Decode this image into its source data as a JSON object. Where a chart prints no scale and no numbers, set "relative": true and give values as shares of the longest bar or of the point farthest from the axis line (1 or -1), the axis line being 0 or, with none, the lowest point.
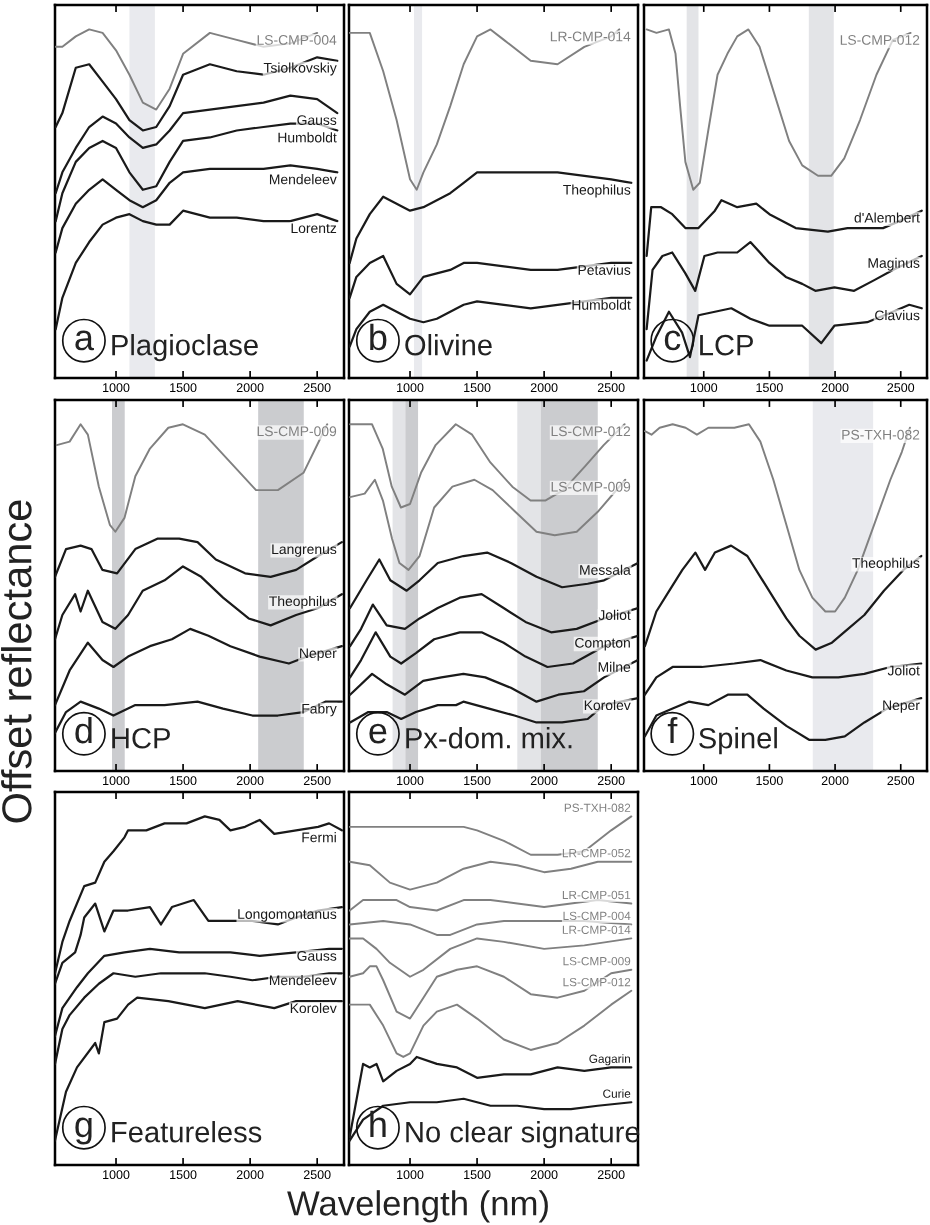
{
  "chart_data": [
    {
      "type": "line",
      "relative": true,
      "tick_labels": "x",
      "title": "Plagioclase",
      "annotations": [
        "a"
      ],
      "xlim": [
        545,
        2700
      ],
      "xticks": [
        1000,
        1500,
        2000,
        2500
      ],
      "bands": [
        {
          "axis": "x",
          "from": 1100,
          "to": 1290,
          "color": "#e9eaee"
        }
      ],
      "x": [
        550,
        600,
        700,
        800,
        900,
        1000,
        1100,
        1200,
        1300,
        1400,
        1500,
        1700,
        1900,
        2100,
        2300,
        2500,
        2650
      ],
      "series": [
        {
          "name": "LS-CMP-004",
          "color": "#808080",
          "values": [
            0.95,
            0.95,
            0.98,
            1.0,
            0.99,
            0.94,
            0.87,
            0.79,
            0.77,
            0.83,
            0.93,
            0.99,
            0.97,
            0.95,
            0.96,
            0.99,
            null
          ]
        },
        {
          "name": "Tsiolkovskiy",
          "color": "#1a1a1a",
          "values": [
            0.72,
            0.76,
            0.89,
            0.9,
            0.85,
            0.8,
            0.74,
            0.71,
            0.72,
            0.78,
            0.87,
            0.9,
            0.88,
            0.87,
            0.89,
            0.92,
            0.91
          ]
        },
        {
          "name": "Gauss",
          "color": "#1a1a1a",
          "values": [
            0.53,
            0.59,
            0.66,
            0.72,
            0.75,
            0.73,
            0.69,
            0.66,
            0.67,
            0.71,
            0.76,
            0.77,
            0.78,
            0.79,
            0.81,
            0.8,
            0.76
          ]
        },
        {
          "name": "Humboldt",
          "color": "#1a1a1a",
          "values": [
            0.45,
            0.53,
            0.62,
            0.66,
            0.68,
            0.66,
            0.59,
            0.54,
            0.55,
            0.62,
            0.68,
            0.69,
            0.71,
            0.72,
            0.73,
            0.73,
            0.71
          ]
        },
        {
          "name": "Mendeleev",
          "color": "#1a1a1a",
          "values": [
            0.36,
            0.43,
            0.5,
            0.54,
            0.57,
            0.54,
            0.51,
            0.49,
            0.51,
            0.56,
            0.59,
            0.6,
            0.6,
            0.6,
            0.61,
            0.6,
            0.59
          ]
        },
        {
          "name": "Lorentz",
          "color": "#1a1a1a",
          "values": [
            0.14,
            0.23,
            0.33,
            0.39,
            0.44,
            0.46,
            0.47,
            0.45,
            0.44,
            0.44,
            0.48,
            0.46,
            0.46,
            0.45,
            0.45,
            0.47,
            0.45
          ]
        }
      ]
    },
    {
      "type": "line",
      "relative": true,
      "tick_labels": "x",
      "title": "Olivine",
      "annotations": [
        "b"
      ],
      "xlim": [
        545,
        2700
      ],
      "xticks": [
        1000,
        1500,
        2000,
        2500
      ],
      "bands": [
        {
          "axis": "x",
          "from": 1030,
          "to": 1090,
          "color": "#e9eaee"
        }
      ],
      "x": [
        550,
        600,
        700,
        800,
        900,
        1000,
        1100,
        1200,
        1300,
        1400,
        1500,
        1700,
        1900,
        2100,
        2300,
        2500,
        2650
      ],
      "series": [
        {
          "name": "LR-CMP-014",
          "color": "#808080",
          "x": [
            550,
            600,
            700,
            800,
            900,
            1000,
            1050,
            1100,
            1200,
            1300,
            1400,
            1500,
            1600,
            1700,
            1900,
            2100,
            2300,
            2500,
            2560
          ],
          "values": [
            0.99,
            0.99,
            0.99,
            0.88,
            0.74,
            0.57,
            0.54,
            0.59,
            0.67,
            0.78,
            0.9,
            0.98,
            1.0,
            0.97,
            0.91,
            0.9,
            0.95,
            0.98,
            1.0
          ]
        },
        {
          "name": "Theophilus",
          "color": "#1a1a1a",
          "values": [
            0.33,
            0.4,
            0.47,
            0.52,
            0.5,
            0.48,
            0.49,
            0.51,
            0.53,
            0.56,
            0.59,
            0.59,
            0.59,
            0.59,
            0.58,
            0.57,
            0.56
          ]
        },
        {
          "name": "Petavius",
          "color": "#1a1a1a",
          "values": [
            0.23,
            0.29,
            0.33,
            0.35,
            0.27,
            0.24,
            0.29,
            0.3,
            0.31,
            0.33,
            0.33,
            0.32,
            0.31,
            0.31,
            0.32,
            0.33,
            0.33
          ]
        },
        {
          "name": "Humboldt",
          "color": "#1a1a1a",
          "values": [
            0.09,
            0.14,
            0.19,
            0.21,
            0.19,
            0.17,
            0.16,
            0.17,
            0.19,
            0.21,
            0.22,
            0.21,
            0.2,
            0.21,
            0.22,
            0.23,
            0.23
          ]
        }
      ]
    },
    {
      "type": "line",
      "relative": true,
      "tick_labels": "x",
      "title": "LCP",
      "annotations": [
        "c"
      ],
      "xlim": [
        545,
        2700
      ],
      "xticks": [
        1000,
        1500,
        2000,
        2500
      ],
      "bands": [
        {
          "axis": "x",
          "from": 870,
          "to": 960,
          "color": "#e3e4e7"
        },
        {
          "axis": "x",
          "from": 1800,
          "to": 1990,
          "color": "#e3e4e7"
        }
      ],
      "series": [
        {
          "name": "LS-CMP-012",
          "color": "#808080",
          "x": [
            565,
            640,
            735,
            785,
            820,
            860,
            920,
            970,
            1030,
            1105,
            1180,
            1255,
            1340,
            1425,
            1525,
            1650,
            1750,
            1870,
            1970,
            2070,
            2190,
            2315,
            2440,
            2575
          ],
          "values": [
            1.0,
            0.99,
            1.0,
            0.93,
            0.78,
            0.62,
            0.54,
            0.56,
            0.7,
            0.87,
            0.93,
            0.98,
            1.0,
            0.95,
            0.83,
            0.68,
            0.61,
            0.58,
            0.58,
            0.63,
            0.74,
            0.87,
            0.97,
            0.99
          ]
        },
        {
          "name": "d'Alembert",
          "color": "#1a1a1a",
          "x": [
            565,
            600,
            675,
            760,
            860,
            960,
            1085,
            1135,
            1255,
            1400,
            1500,
            1700,
            1945,
            2095,
            2245,
            2365,
            2490,
            2660
          ],
          "values": [
            0.35,
            0.49,
            0.49,
            0.47,
            0.43,
            0.43,
            0.48,
            0.51,
            0.49,
            0.5,
            0.47,
            0.43,
            0.42,
            0.43,
            0.43,
            0.43,
            0.45,
            0.48
          ]
        },
        {
          "name": "Maginus",
          "color": "#1a1a1a",
          "x": [
            565,
            610,
            685,
            760,
            860,
            935,
            1005,
            1105,
            1255,
            1355,
            1500,
            1625,
            1750,
            1850,
            1995,
            2145,
            2295,
            2440,
            2660
          ],
          "values": [
            0.14,
            0.31,
            0.35,
            0.36,
            0.3,
            0.25,
            0.35,
            0.36,
            0.36,
            0.39,
            0.33,
            0.29,
            0.27,
            0.25,
            0.26,
            0.25,
            0.28,
            0.31,
            0.35
          ]
        },
        {
          "name": "Clavius",
          "color": "#1a1a1a",
          "x": [
            565,
            640,
            735,
            835,
            895,
            960,
            1085,
            1210,
            1355,
            1500,
            1750,
            1895,
            1995,
            2245,
            2440,
            2565,
            2660
          ],
          "values": [
            0.05,
            0.12,
            0.19,
            0.13,
            0.06,
            0.18,
            0.19,
            0.2,
            0.17,
            0.15,
            0.15,
            0.1,
            0.15,
            0.16,
            0.19,
            0.21,
            0.2
          ]
        }
      ]
    },
    {
      "type": "line",
      "relative": true,
      "tick_labels": "x",
      "title": "HCP",
      "annotations": [
        "d"
      ],
      "ylabel": "Offset reflectance",
      "xlim": [
        545,
        2700
      ],
      "xticks": [
        1000,
        1500,
        2000,
        2500
      ],
      "bands": [
        {
          "axis": "x",
          "from": 970,
          "to": 1065,
          "color": "#cbcccf"
        },
        {
          "axis": "x",
          "from": 2060,
          "to": 2400,
          "color": "#cbcccf"
        }
      ],
      "series": [
        {
          "name": "LS-CMP-009",
          "color": "#808080",
          "x": [
            558,
            654,
            736,
            790,
            872,
            954,
            995,
            1063,
            1144,
            1253,
            1390,
            1499,
            1662,
            1853,
            2044,
            2207,
            2398,
            2575
          ],
          "values": [
            0.94,
            0.95,
            1.0,
            0.97,
            0.82,
            0.71,
            0.69,
            0.73,
            0.85,
            0.93,
            0.99,
            1.0,
            0.97,
            0.89,
            0.81,
            0.81,
            0.86,
            1.0
          ]
        },
        {
          "name": "Langrenus",
          "color": "#1a1a1a",
          "x": [
            545,
            627,
            736,
            817,
            899,
            1008,
            1144,
            1308,
            1471,
            1608,
            1744,
            1962,
            2153,
            2343,
            2507,
            2684
          ],
          "values": [
            0.56,
            0.64,
            0.65,
            0.64,
            0.58,
            0.57,
            0.64,
            0.67,
            0.67,
            0.66,
            0.61,
            0.57,
            0.56,
            0.58,
            0.62,
            0.66
          ]
        },
        {
          "name": "Theophilus",
          "color": "#1a1a1a",
          "x": [
            545,
            600,
            695,
            736,
            790,
            899,
            995,
            1090,
            1199,
            1362,
            1499,
            1635,
            1798,
            1989,
            2153,
            2343,
            2507,
            2684
          ],
          "values": [
            0.38,
            0.45,
            0.51,
            0.46,
            0.52,
            0.43,
            0.41,
            0.45,
            0.52,
            0.55,
            0.59,
            0.56,
            0.5,
            0.44,
            0.42,
            0.45,
            0.47,
            0.51
          ]
        },
        {
          "name": "Neper",
          "color": "#1a1a1a",
          "x": [
            545,
            654,
            790,
            899,
            981,
            1090,
            1253,
            1417,
            1553,
            1689,
            1853,
            2071,
            2289,
            2425,
            2684
          ],
          "values": [
            0.19,
            0.29,
            0.37,
            0.32,
            0.3,
            0.33,
            0.36,
            0.38,
            0.41,
            0.39,
            0.36,
            0.33,
            0.31,
            0.33,
            0.36
          ]
        },
        {
          "name": "Fabry",
          "color": "#1a1a1a",
          "x": [
            545,
            627,
            736,
            872,
            981,
            1144,
            1362,
            1608,
            1798,
            2017,
            2207,
            2398,
            2561,
            2684
          ],
          "values": [
            0.11,
            0.17,
            0.2,
            0.18,
            0.16,
            0.19,
            0.19,
            0.2,
            0.18,
            0.16,
            0.16,
            0.17,
            0.2,
            0.2
          ]
        }
      ]
    },
    {
      "type": "line",
      "relative": true,
      "tick_labels": "x",
      "title": "Px-dom. mix.",
      "annotations": [
        "e"
      ],
      "xlim": [
        545,
        2700
      ],
      "xticks": [
        1000,
        1500,
        2000,
        2500
      ],
      "bands": [
        {
          "axis": "x",
          "from": 870,
          "to": 965,
          "color": "#e3e4e7"
        },
        {
          "axis": "x",
          "from": 965,
          "to": 1060,
          "color": "#cbcccf"
        },
        {
          "axis": "x",
          "from": 1800,
          "to": 1975,
          "color": "#e3e4e7"
        },
        {
          "axis": "x",
          "from": 1975,
          "to": 2400,
          "color": "#cbcccf"
        }
      ],
      "series": [
        {
          "name": "LS-CMP-012",
          "color": "#808080",
          "x": [
            553,
            717,
            796,
            864,
            932,
            1000,
            1082,
            1191,
            1341,
            1463,
            1599,
            1763,
            1899,
            2008,
            2144,
            2308,
            2444,
            2600
          ],
          "values": [
            1.0,
            1.0,
            0.93,
            0.82,
            0.76,
            0.77,
            0.86,
            0.94,
            1.0,
            0.97,
            0.89,
            0.82,
            0.78,
            0.78,
            0.81,
            0.88,
            0.94,
            1.0
          ]
        },
        {
          "name": "LS-CMP-009",
          "color": "#808080",
          "x": [
            553,
            662,
            738,
            798,
            866,
            921,
            989,
            1071,
            1180,
            1316,
            1480,
            1616,
            1779,
            1943,
            2079,
            2243,
            2406,
            2605
          ],
          "values": [
            0.79,
            0.8,
            0.84,
            0.78,
            0.67,
            0.6,
            0.58,
            0.62,
            0.76,
            0.82,
            0.84,
            0.81,
            0.75,
            0.69,
            0.68,
            0.69,
            0.75,
            0.84
          ]
        },
        {
          "name": "Messala",
          "color": "#1a1a1a",
          "x": [
            553,
            676,
            771,
            853,
            975,
            1071,
            1207,
            1398,
            1575,
            1752,
            1943,
            2134,
            2325,
            2447,
            2700
          ],
          "values": [
            0.47,
            0.55,
            0.61,
            0.55,
            0.52,
            0.55,
            0.6,
            0.62,
            0.63,
            0.6,
            0.56,
            0.53,
            0.54,
            0.55,
            0.6
          ]
        },
        {
          "name": "Joliot",
          "color": "#1a1a1a",
          "x": [
            553,
            635,
            723,
            826,
            962,
            1071,
            1207,
            1371,
            1534,
            1698,
            1861,
            2052,
            2243,
            2447,
            2700
          ],
          "values": [
            0.36,
            0.41,
            0.48,
            0.42,
            0.41,
            0.44,
            0.47,
            0.5,
            0.51,
            0.47,
            0.43,
            0.4,
            0.41,
            0.44,
            0.47
          ]
        },
        {
          "name": "Compton",
          "color": "#1a1a1a",
          "x": [
            553,
            635,
            744,
            853,
            934,
            1044,
            1180,
            1371,
            1534,
            1698,
            1861,
            2025,
            2215,
            2447,
            2700
          ],
          "values": [
            0.27,
            0.32,
            0.4,
            0.33,
            0.31,
            0.34,
            0.38,
            0.4,
            0.4,
            0.37,
            0.33,
            0.3,
            0.31,
            0.36,
            0.39
          ]
        },
        {
          "name": "Milne",
          "color": "#1a1a1a",
          "x": [
            553,
            717,
            826,
            962,
            1098,
            1234,
            1398,
            1561,
            1752,
            1943,
            2106,
            2297,
            2447,
            2700
          ],
          "values": [
            0.22,
            0.28,
            0.25,
            0.22,
            0.26,
            0.27,
            0.28,
            0.27,
            0.24,
            0.2,
            0.22,
            0.23,
            0.27,
            0.32
          ]
        },
        {
          "name": "Korolev",
          "color": "#1a1a1a",
          "x": [
            553,
            689,
            826,
            934,
            1044,
            1207,
            1343,
            1398,
            1589,
            1779,
            1943,
            2134,
            2325,
            2447,
            2700
          ],
          "values": [
            0.14,
            0.17,
            0.17,
            0.15,
            0.17,
            0.19,
            0.19,
            0.2,
            0.18,
            0.16,
            0.14,
            0.14,
            0.15,
            0.19,
            0.21
          ]
        }
      ]
    },
    {
      "type": "line",
      "relative": true,
      "tick_labels": "x",
      "title": "Spinel",
      "annotations": [
        "f"
      ],
      "xlim": [
        545,
        2700
      ],
      "xticks": [
        1000,
        1500,
        2000,
        2500
      ],
      "bands": [
        {
          "axis": "x",
          "from": 1830,
          "to": 2290,
          "color": "#e9eaee"
        }
      ],
      "series": [
        {
          "name": "PS-TXH-082",
          "color": "#808080",
          "x": [
            552,
            602,
            664,
            763,
            862,
            948,
            1035,
            1233,
            1344,
            1431,
            1530,
            1629,
            1728,
            1827,
            1926,
            2000,
            2074,
            2173,
            2297,
            2421,
            2508,
            2570
          ],
          "values": [
            0.98,
            0.97,
            0.99,
            1.0,
            0.99,
            0.97,
            0.99,
            0.99,
            1.0,
            0.95,
            0.84,
            0.71,
            0.58,
            0.5,
            0.46,
            0.46,
            0.5,
            0.58,
            0.71,
            0.84,
            0.92,
            0.99
          ]
        },
        {
          "name": "Theophilus",
          "color": "#1a1a1a",
          "x": [
            552,
            639,
            738,
            837,
            936,
            1010,
            1085,
            1208,
            1332,
            1431,
            1530,
            1629,
            1728,
            1852,
            1976,
            2099,
            2223,
            2372,
            2520,
            2656
          ],
          "values": [
            0.36,
            0.46,
            0.52,
            0.58,
            0.63,
            0.58,
            0.63,
            0.65,
            0.62,
            0.56,
            0.5,
            0.44,
            0.39,
            0.35,
            0.37,
            0.41,
            0.45,
            0.52,
            0.58,
            0.62
          ]
        },
        {
          "name": "Joliot",
          "color": "#1a1a1a",
          "x": [
            552,
            639,
            763,
            985,
            1233,
            1431,
            1629,
            1827,
            2025,
            2223,
            2421,
            2656
          ],
          "values": [
            0.22,
            0.27,
            0.3,
            0.3,
            0.31,
            0.32,
            0.29,
            0.27,
            0.27,
            0.28,
            0.3,
            0.31
          ]
        },
        {
          "name": "Neper",
          "color": "#1a1a1a",
          "x": [
            552,
            639,
            763,
            886,
            1035,
            1183,
            1332,
            1456,
            1629,
            1802,
            1926,
            2074,
            2223,
            2396,
            2656
          ],
          "values": [
            0.1,
            0.16,
            0.18,
            0.2,
            0.19,
            0.22,
            0.22,
            0.18,
            0.13,
            0.09,
            0.09,
            0.1,
            0.14,
            0.18,
            0.21
          ]
        }
      ]
    },
    {
      "type": "line",
      "relative": true,
      "tick_labels": "x",
      "title": "Featureless",
      "annotations": [
        "g"
      ],
      "xlim": [
        545,
        2700
      ],
      "xticks": [
        1000,
        1500,
        2000,
        2500
      ],
      "series": [
        {
          "name": "Fermi",
          "color": "#1a1a1a",
          "x": [
            545,
            600,
            654,
            763,
            845,
            913,
            981,
            1063,
            1090,
            1226,
            1362,
            1526,
            1662,
            1771,
            1853,
            1962,
            2071,
            2180,
            2343,
            2507,
            2589,
            2684
          ],
          "values": [
            0.55,
            0.64,
            0.7,
            0.8,
            0.81,
            0.87,
            0.9,
            0.94,
            0.96,
            0.96,
            0.98,
            0.98,
            1.0,
            0.99,
            0.96,
            0.97,
            0.99,
            0.95,
            0.96,
            0.97,
            0.98,
            0.96
          ]
        },
        {
          "name": "Longomontanus",
          "color": "#1a1a1a",
          "x": [
            545,
            600,
            695,
            736,
            763,
            845,
            913,
            981,
            1090,
            1253,
            1335,
            1417,
            1580,
            1689,
            1853,
            2017,
            2207,
            2343,
            2507,
            2684
          ],
          "values": [
            0.52,
            0.58,
            0.61,
            0.66,
            0.71,
            0.75,
            0.67,
            0.73,
            0.73,
            0.74,
            0.69,
            0.74,
            0.76,
            0.7,
            0.7,
            0.7,
            0.69,
            0.71,
            0.73,
            0.74
          ]
        },
        {
          "name": "Gauss",
          "color": "#1a1a1a",
          "x": [
            545,
            600,
            709,
            790,
            913,
            1063,
            1253,
            1471,
            1662,
            1853,
            2071,
            2343,
            2589,
            2684
          ],
          "values": [
            0.37,
            0.45,
            0.51,
            0.55,
            0.6,
            0.61,
            0.62,
            0.61,
            0.61,
            0.61,
            0.6,
            0.61,
            0.62,
            0.62
          ]
        },
        {
          "name": "Mendeleev",
          "color": "#1a1a1a",
          "x": [
            545,
            600,
            654,
            763,
            872,
            981,
            1144,
            1335,
            1526,
            1662,
            1853,
            2017,
            2207,
            2398,
            2589,
            2684
          ],
          "values": [
            0.29,
            0.39,
            0.43,
            0.48,
            0.52,
            0.55,
            0.54,
            0.55,
            0.55,
            0.55,
            0.54,
            0.53,
            0.54,
            0.54,
            0.55,
            0.55
          ]
        },
        {
          "name": "Korolev",
          "color": "#1a1a1a",
          "x": [
            545,
            627,
            709,
            845,
            872,
            913,
            1008,
            1090,
            1158,
            1390,
            1662,
            1907,
            2180,
            2343,
            2684
          ],
          "values": [
            0.07,
            0.21,
            0.28,
            0.35,
            0.32,
            0.41,
            0.42,
            0.46,
            0.48,
            0.47,
            0.45,
            0.47,
            0.45,
            0.47,
            0.47
          ]
        }
      ]
    },
    {
      "type": "line",
      "relative": true,
      "tick_labels": "x",
      "title": "No clear signature",
      "annotations": [
        "h"
      ],
      "xlabel": "Wavelength (nm)",
      "xlim": [
        545,
        2700
      ],
      "xticks": [
        1000,
        1500,
        2000,
        2500
      ],
      "series": [
        {
          "name": "PS-TXH-082",
          "color": "#808080",
          "x": [
            550,
            800,
            1000,
            1400,
            1500,
            1700,
            1900,
            2100,
            2300,
            2500,
            2650
          ],
          "values": [
            0.97,
            0.97,
            0.97,
            0.97,
            0.96,
            0.93,
            0.89,
            0.89,
            0.9,
            0.96,
            1.0
          ]
        },
        {
          "name": "LR-CMP-052",
          "color": "#808080",
          "x": [
            550,
            700,
            850,
            1000,
            1200,
            1400,
            1600,
            1800,
            2000,
            2200,
            2400,
            2650
          ],
          "values": [
            0.87,
            0.86,
            0.81,
            0.79,
            0.81,
            0.85,
            0.87,
            0.86,
            0.84,
            0.85,
            0.87,
            0.87
          ]
        },
        {
          "name": "LR-CMP-051",
          "color": "#808080",
          "x": [
            550,
            650,
            800,
            900,
            1000,
            1200,
            1400,
            1600,
            1800,
            2000,
            2200,
            2400,
            2650
          ],
          "values": [
            0.73,
            0.76,
            0.76,
            0.76,
            0.74,
            0.73,
            0.76,
            0.76,
            0.75,
            0.74,
            0.75,
            0.76,
            0.75
          ]
        },
        {
          "name": "LS-CMP-004",
          "color": "#808080",
          "x": [
            550,
            800,
            1000,
            1200,
            1300,
            1500,
            1700,
            2000,
            2300,
            2650
          ],
          "values": [
            0.69,
            0.7,
            0.69,
            0.66,
            0.66,
            0.69,
            0.7,
            0.7,
            0.7,
            0.69
          ]
        },
        {
          "name": "LR-CMP-014",
          "color": "#808080",
          "x": [
            550,
            650,
            750,
            850,
            1000,
            1100,
            1300,
            1500,
            1700,
            2000,
            2300,
            2650
          ],
          "values": [
            0.65,
            0.65,
            0.62,
            0.58,
            0.54,
            0.56,
            0.62,
            0.65,
            0.64,
            0.62,
            0.63,
            0.65
          ]
        },
        {
          "name": "LS-CMP-009",
          "color": "#808080",
          "x": [
            550,
            650,
            700,
            750,
            800,
            900,
            1000,
            1100,
            1200,
            1350,
            1500,
            1700,
            1900,
            2100,
            2300,
            2500,
            2650
          ],
          "values": [
            0.54,
            0.55,
            0.57,
            0.57,
            0.53,
            0.44,
            0.42,
            0.48,
            0.54,
            0.56,
            0.57,
            0.54,
            0.49,
            0.48,
            0.5,
            0.55,
            0.56
          ]
        },
        {
          "name": "LS-CMP-012",
          "color": "#808080",
          "x": [
            550,
            700,
            800,
            900,
            950,
            1000,
            1100,
            1200,
            1350,
            1500,
            1700,
            1900,
            2100,
            2300,
            2500,
            2650
          ],
          "values": [
            0.46,
            0.46,
            0.4,
            0.32,
            0.31,
            0.32,
            0.4,
            0.44,
            0.46,
            0.42,
            0.36,
            0.33,
            0.35,
            0.4,
            0.46,
            0.5
          ]
        },
        {
          "name": "Gagarin",
          "color": "#1a1a1a",
          "x": [
            550,
            650,
            700,
            750,
            800,
            900,
            1000,
            1050,
            1200,
            1350,
            1500,
            1700,
            1900,
            2100,
            2300,
            2500,
            2650
          ],
          "values": [
            0.08,
            0.29,
            0.28,
            0.29,
            0.24,
            0.27,
            0.29,
            0.31,
            0.29,
            0.28,
            0.25,
            0.26,
            0.26,
            0.28,
            0.27,
            0.28,
            0.28
          ]
        },
        {
          "name": "Curie",
          "color": "#1a1a1a",
          "x": [
            550,
            650,
            800,
            1000,
            1200,
            1400,
            1600,
            1800,
            2000,
            2200,
            2400,
            2650
          ],
          "values": [
            0.07,
            0.13,
            0.17,
            0.18,
            0.18,
            0.19,
            0.17,
            0.17,
            0.16,
            0.16,
            0.17,
            0.18
          ]
        }
      ]
    }
  ]
}
